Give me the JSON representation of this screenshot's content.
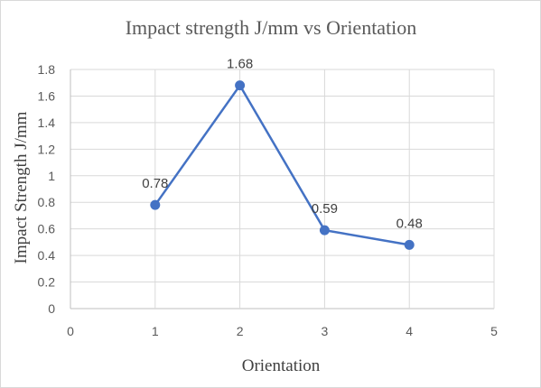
{
  "chart_data": {
    "type": "scatter",
    "title": "Impact strength J/mm  vs Orientation",
    "xlabel": "Orientation",
    "ylabel": "Impact Strength J/mm",
    "xlim": [
      0,
      5
    ],
    "ylim": [
      0,
      1.8
    ],
    "x_ticks": [
      "0",
      "1",
      "2",
      "3",
      "4",
      "5"
    ],
    "y_ticks": [
      "0",
      "0.2",
      "0.4",
      "0.6",
      "0.8",
      "1",
      "1.2",
      "1.4",
      "1.6",
      "1.8"
    ],
    "grid": "horizontal and vertical",
    "legend": "none",
    "series": [
      {
        "x": [
          1,
          2,
          3,
          4
        ],
        "y": [
          0.78,
          1.68,
          0.59,
          0.48
        ],
        "labels": [
          "0.78",
          "1.68",
          "0.59",
          "0.48"
        ],
        "color": "#4472c4",
        "style": "line with markers"
      }
    ]
  }
}
